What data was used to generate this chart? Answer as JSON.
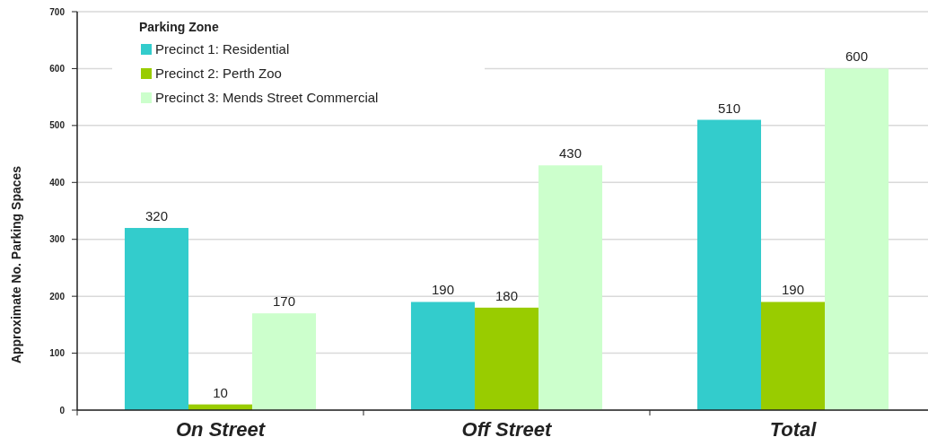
{
  "chart_data": {
    "type": "bar",
    "categories": [
      "On Street",
      "Off Street",
      "Total"
    ],
    "series": [
      {
        "name": "Precinct 1: Residential",
        "color": "#33cccc",
        "values": [
          320,
          190,
          510
        ]
      },
      {
        "name": "Precinct 2: Perth Zoo",
        "color": "#99cc00",
        "values": [
          10,
          180,
          190
        ]
      },
      {
        "name": "Precinct 3: Mends Street Commercial",
        "color": "#ccffcc",
        "values": [
          170,
          430,
          600
        ]
      }
    ],
    "ylabel": "Approximate No. Parking Spaces",
    "legend_title": "Parking Zone",
    "ylim": [
      0,
      700
    ],
    "yticks": [
      0,
      100,
      200,
      300,
      400,
      500,
      600,
      700
    ],
    "grid": "y",
    "legend": "top left",
    "data_labels": true
  }
}
